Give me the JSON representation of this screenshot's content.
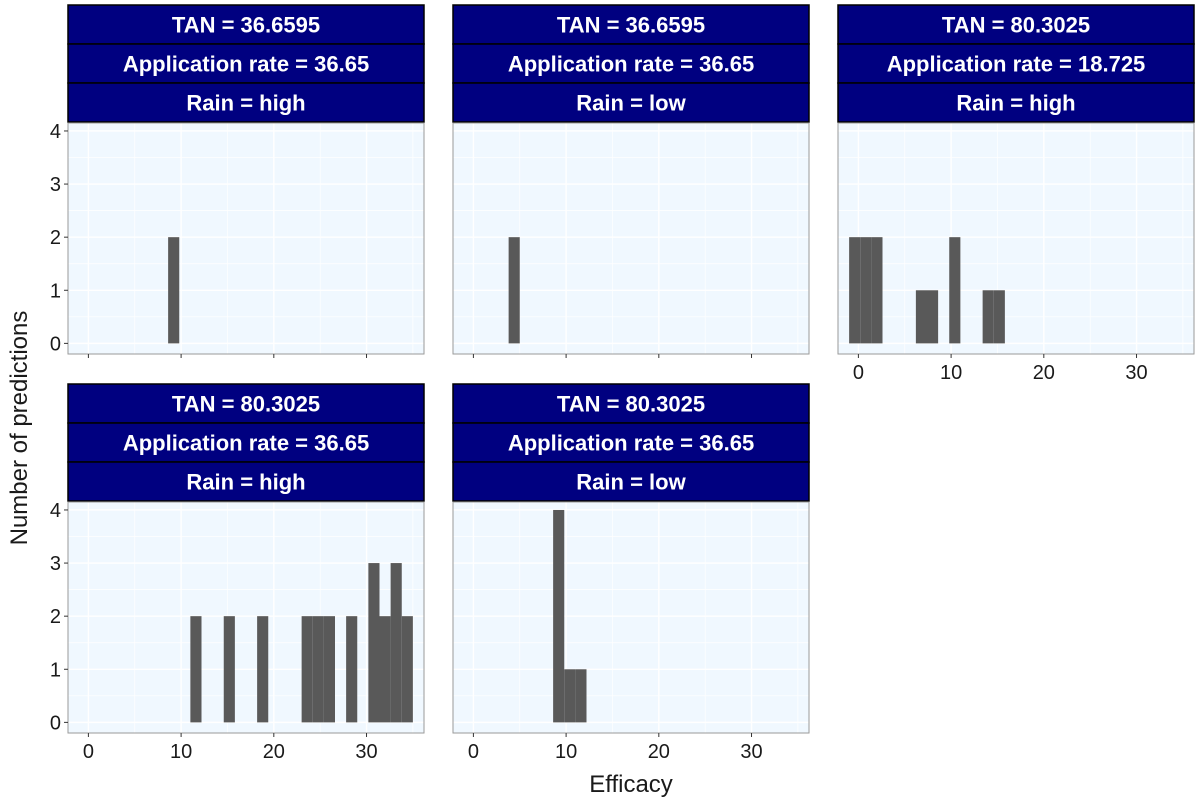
{
  "chart_data": {
    "type": "bar",
    "xlabel": "Efficacy",
    "ylabel": "Number of predictions",
    "xlim": [
      -2.2,
      36.2
    ],
    "ylim": [
      -0.2,
      4.15
    ],
    "x_ticks": [
      0,
      10,
      20,
      30
    ],
    "y_ticks": [
      0,
      1,
      2,
      3,
      4
    ],
    "bin_width": 1.2,
    "grid": true,
    "colors": {
      "strip_fill": "#000080",
      "panel_fill": "#f0f8ff",
      "bar_fill": "#595959"
    },
    "panels": [
      {
        "strips": [
          {
            "label": "TAN =",
            "value": "36.6595"
          },
          {
            "label": "Application rate =",
            "value": "36.65"
          },
          {
            "label": "Rain =",
            "value": "high"
          }
        ],
        "bars": [
          {
            "x": 9.2,
            "count": 2
          }
        ]
      },
      {
        "strips": [
          {
            "label": "TAN =",
            "value": "36.6595"
          },
          {
            "label": "Application rate =",
            "value": "36.65"
          },
          {
            "label": "Rain =",
            "value": "low"
          }
        ],
        "bars": [
          {
            "x": 4.4,
            "count": 2
          }
        ]
      },
      {
        "strips": [
          {
            "label": "TAN =",
            "value": "80.3025"
          },
          {
            "label": "Application rate =",
            "value": "18.725"
          },
          {
            "label": "Rain =",
            "value": "high"
          }
        ],
        "bars": [
          {
            "x": -0.4,
            "count": 2
          },
          {
            "x": 0.8,
            "count": 2
          },
          {
            "x": 2.0,
            "count": 2
          },
          {
            "x": 6.8,
            "count": 1
          },
          {
            "x": 8.0,
            "count": 1
          },
          {
            "x": 10.4,
            "count": 2
          },
          {
            "x": 14.0,
            "count": 1
          },
          {
            "x": 15.2,
            "count": 1
          }
        ]
      },
      {
        "strips": [
          {
            "label": "TAN =",
            "value": "80.3025"
          },
          {
            "label": "Application rate =",
            "value": "36.65"
          },
          {
            "label": "Rain =",
            "value": "high"
          }
        ],
        "bars": [
          {
            "x": 11.6,
            "count": 2
          },
          {
            "x": 15.2,
            "count": 2
          },
          {
            "x": 18.8,
            "count": 2
          },
          {
            "x": 23.6,
            "count": 2
          },
          {
            "x": 24.8,
            "count": 2
          },
          {
            "x": 26.0,
            "count": 2
          },
          {
            "x": 28.4,
            "count": 2
          },
          {
            "x": 30.8,
            "count": 3
          },
          {
            "x": 32.0,
            "count": 2
          },
          {
            "x": 33.2,
            "count": 3
          },
          {
            "x": 34.4,
            "count": 2
          }
        ]
      },
      {
        "strips": [
          {
            "label": "TAN =",
            "value": "80.3025"
          },
          {
            "label": "Application rate =",
            "value": "36.65"
          },
          {
            "label": "Rain =",
            "value": "low"
          }
        ],
        "bars": [
          {
            "x": 9.2,
            "count": 4
          },
          {
            "x": 10.4,
            "count": 1
          },
          {
            "x": 11.6,
            "count": 1
          }
        ]
      }
    ]
  }
}
